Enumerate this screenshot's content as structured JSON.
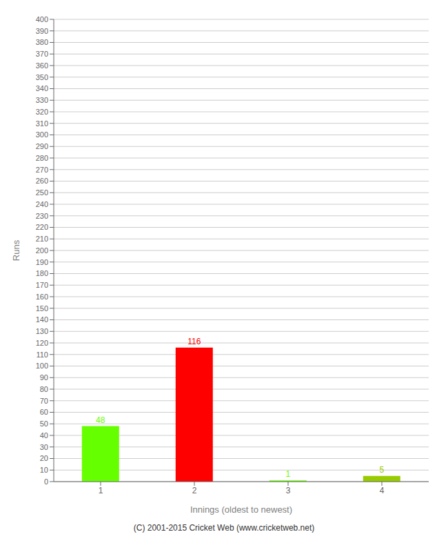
{
  "chart_data": {
    "type": "bar",
    "categories": [
      "1",
      "2",
      "3",
      "4"
    ],
    "values": [
      48,
      116,
      1,
      5
    ],
    "colors": [
      "#66ff00",
      "#ff0000",
      "#66ff00",
      "#99cc00"
    ],
    "xlabel": "Innings (oldest to newest)",
    "ylabel": "Runs",
    "ylim": [
      0,
      400
    ],
    "yticks": [
      0,
      10,
      20,
      30,
      40,
      50,
      60,
      70,
      80,
      90,
      100,
      110,
      120,
      130,
      140,
      150,
      160,
      170,
      180,
      190,
      200,
      210,
      220,
      230,
      240,
      250,
      260,
      270,
      280,
      290,
      300,
      310,
      320,
      330,
      340,
      350,
      360,
      370,
      380,
      390,
      400
    ],
    "grid": true,
    "data_labels": true,
    "annotations": [
      "(C) 2001-2015 Cricket Web (www.cricketweb.net)"
    ]
  }
}
